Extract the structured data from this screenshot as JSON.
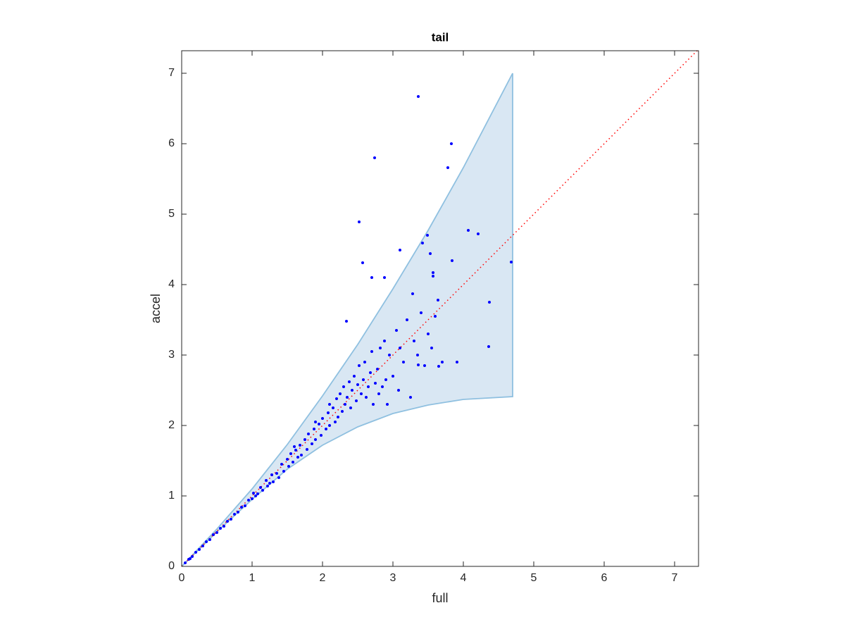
{
  "chart_data": {
    "type": "scatter",
    "title": "tail",
    "x_label": "full",
    "y_label": "accel",
    "xlim": [
      0,
      7.34
    ],
    "ylim": [
      0,
      7.32
    ],
    "xticks": [
      0,
      1,
      2,
      3,
      4,
      5,
      6,
      7
    ],
    "yticks": [
      0,
      1,
      2,
      3,
      4,
      5,
      6,
      7
    ],
    "grid": false,
    "band": {
      "x": [
        0,
        0.5,
        1,
        1.5,
        2,
        2.5,
        3,
        3.5,
        4,
        4.7
      ],
      "lower": [
        0,
        0.49,
        0.95,
        1.38,
        1.72,
        1.98,
        2.17,
        2.29,
        2.37,
        2.41
      ],
      "upper": [
        0,
        0.53,
        1.1,
        1.73,
        2.42,
        3.15,
        3.94,
        4.77,
        5.66,
        7.0
      ],
      "fill": "#d9e7f3",
      "edge": "#8fc0e0"
    },
    "reference": {
      "x": [
        0,
        7.34
      ],
      "values": [
        0,
        7.34
      ],
      "color": "#ff0000"
    },
    "points": {
      "color": "#0000ff",
      "x": [
        0.05,
        0.1,
        0.15,
        0.2,
        0.25,
        0.3,
        0.35,
        0.4,
        0.45,
        0.5,
        0.55,
        0.6,
        0.65,
        0.7,
        0.75,
        0.8,
        0.85,
        0.9,
        0.95,
        1.0,
        1.02,
        1.08,
        1.12,
        1.15,
        1.2,
        1.22,
        1.28,
        1.3,
        1.35,
        1.38,
        1.42,
        1.45,
        1.5,
        1.52,
        1.55,
        1.58,
        1.62,
        1.65,
        1.68,
        1.7,
        1.75,
        1.78,
        1.8,
        1.85,
        1.88,
        1.9,
        1.95,
        1.98,
        2.0,
        2.05,
        2.08,
        2.1,
        2.15,
        2.18,
        2.2,
        2.22,
        2.25,
        2.28,
        2.3,
        2.32,
        2.35,
        2.38,
        2.4,
        2.42,
        2.45,
        2.48,
        2.5,
        2.52,
        2.55,
        2.58,
        2.6,
        2.62,
        2.65,
        2.68,
        2.7,
        2.72,
        2.75,
        2.78,
        2.8,
        2.82,
        2.85,
        2.88,
        2.9,
        2.92,
        2.95,
        3.0,
        3.05,
        3.08,
        3.1,
        3.15,
        3.2,
        3.25,
        3.3,
        3.35,
        3.4,
        3.45,
        3.5,
        3.55,
        3.6,
        3.7,
        1.6,
        1.9,
        2.1,
        0.12,
        1.05,
        1.25,
        3.36,
        2.74,
        3.83,
        3.78,
        2.52,
        4.07,
        4.21,
        3.49,
        3.42,
        3.53,
        3.1,
        4.68,
        3.84,
        2.57,
        2.7,
        2.88,
        3.57,
        3.57,
        3.28,
        4.37,
        3.64,
        2.34,
        4.36,
        3.91,
        3.65,
        3.36
      ],
      "values": [
        0.05,
        0.1,
        0.14,
        0.2,
        0.24,
        0.29,
        0.35,
        0.38,
        0.45,
        0.48,
        0.54,
        0.57,
        0.64,
        0.67,
        0.74,
        0.77,
        0.84,
        0.86,
        0.94,
        0.96,
        1.04,
        1.03,
        1.12,
        1.08,
        1.22,
        1.14,
        1.3,
        1.2,
        1.32,
        1.26,
        1.45,
        1.35,
        1.52,
        1.42,
        1.6,
        1.48,
        1.65,
        1.55,
        1.72,
        1.58,
        1.8,
        1.66,
        1.88,
        1.74,
        1.95,
        1.8,
        2.02,
        1.86,
        2.1,
        1.95,
        2.18,
        2.0,
        2.25,
        2.05,
        2.38,
        2.12,
        2.45,
        2.2,
        2.55,
        2.3,
        2.4,
        2.62,
        2.25,
        2.5,
        2.7,
        2.35,
        2.58,
        2.85,
        2.45,
        2.65,
        2.9,
        2.4,
        2.55,
        2.75,
        3.05,
        2.3,
        2.6,
        2.8,
        2.45,
        3.1,
        2.55,
        3.2,
        2.65,
        2.3,
        3.0,
        2.7,
        3.35,
        2.5,
        3.1,
        2.9,
        3.5,
        2.4,
        3.2,
        3.0,
        3.6,
        2.85,
        3.3,
        3.1,
        3.55,
        2.9,
        1.7,
        2.05,
        2.3,
        0.11,
        1.0,
        1.18,
        6.67,
        5.8,
        6.0,
        5.66,
        4.89,
        4.77,
        4.72,
        4.7,
        4.59,
        4.44,
        4.49,
        4.32,
        4.34,
        4.31,
        4.1,
        4.1,
        4.17,
        4.12,
        3.87,
        3.75,
        3.78,
        3.48,
        3.12,
        2.9,
        2.84,
        2.86
      ]
    }
  }
}
